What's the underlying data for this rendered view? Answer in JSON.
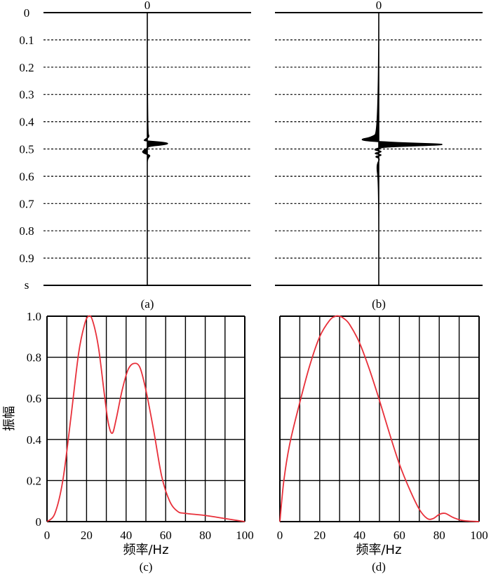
{
  "chart_data": [
    {
      "panel": "a",
      "type": "line",
      "caption": "(a)",
      "trace_label": "0",
      "time_axis": {
        "ticks": [
          "0",
          "0.1",
          "0.2",
          "0.3",
          "0.4",
          "0.5",
          "0.6",
          "0.7",
          "0.8",
          "0.9"
        ],
        "unit": "s",
        "range": [
          0,
          1.0
        ]
      },
      "wavelet": {
        "time": [
          0.44,
          0.455,
          0.465,
          0.47,
          0.475,
          0.48,
          0.485,
          0.49,
          0.497,
          0.505,
          0.512,
          0.518,
          0.524,
          0.53,
          0.54,
          0.56
        ],
        "amplitude": [
          0,
          0.3,
          -0.3,
          -0.5,
          2.0,
          3.0,
          2.0,
          0.2,
          0,
          -0.5,
          -0.7,
          -0.2,
          0.4,
          0.2,
          0,
          0
        ]
      }
    },
    {
      "panel": "b",
      "type": "line",
      "caption": "(b)",
      "trace_label": "0",
      "time_axis": {
        "ticks": [
          "0",
          "0.1",
          "0.2",
          "0.3",
          "0.4",
          "0.5",
          "0.6",
          "0.7",
          "0.8",
          "0.9"
        ],
        "unit": "s",
        "range": [
          0,
          1.0
        ]
      },
      "wavelet": {
        "time": [
          0.44,
          0.458,
          0.466,
          0.472,
          0.478,
          0.483,
          0.487,
          0.492,
          0.498,
          0.504,
          0.51,
          0.516,
          0.522,
          0.528,
          0.534,
          0.56,
          0.62
        ],
        "amplitude": [
          0,
          -1.0,
          -2.5,
          -0.8,
          3.5,
          9.0,
          6.0,
          1.0,
          -0.3,
          -0.6,
          0.6,
          -0.8,
          0.6,
          -0.6,
          0.2,
          -0.3,
          0
        ]
      }
    },
    {
      "panel": "c",
      "type": "line",
      "caption": "(c)",
      "xlabel": "频率/Hz",
      "ylabel": "振幅",
      "xlim": [
        0,
        100
      ],
      "ylim": [
        0,
        1.0
      ],
      "x_ticks": [
        0,
        20,
        40,
        60,
        80,
        100
      ],
      "y_ticks": [
        "0",
        "0.2",
        "0.4",
        "0.6",
        "0.8",
        "1.0"
      ],
      "grid": true,
      "line_color": "#e8303a",
      "x": [
        0,
        4,
        8,
        12,
        16,
        19,
        21,
        23,
        26,
        29,
        31,
        33,
        35,
        38,
        41,
        44,
        47,
        50,
        54,
        58,
        62,
        66,
        70,
        80,
        90,
        100
      ],
      "y": [
        0,
        0.04,
        0.2,
        0.5,
        0.82,
        0.96,
        1.0,
        0.98,
        0.85,
        0.62,
        0.48,
        0.43,
        0.5,
        0.64,
        0.74,
        0.77,
        0.75,
        0.64,
        0.44,
        0.22,
        0.1,
        0.05,
        0.04,
        0.03,
        0.015,
        0
      ]
    },
    {
      "panel": "d",
      "type": "line",
      "caption": "(d)",
      "xlabel": "频率/Hz",
      "xlim": [
        0,
        100
      ],
      "ylim": [
        0,
        1.0
      ],
      "x_ticks": [
        0,
        20,
        40,
        60,
        80,
        100
      ],
      "y_ticks": [],
      "grid": true,
      "line_color": "#e8303a",
      "x": [
        0,
        2,
        5,
        10,
        15,
        20,
        25,
        28,
        30,
        32,
        35,
        40,
        45,
        50,
        55,
        60,
        65,
        70,
        74,
        77,
        80,
        83,
        87,
        92,
        100
      ],
      "y": [
        0,
        0.2,
        0.38,
        0.58,
        0.76,
        0.9,
        0.98,
        1.0,
        1.0,
        0.99,
        0.96,
        0.87,
        0.74,
        0.59,
        0.43,
        0.28,
        0.16,
        0.06,
        0.015,
        0.015,
        0.035,
        0.04,
        0.02,
        0.005,
        0
      ]
    }
  ]
}
